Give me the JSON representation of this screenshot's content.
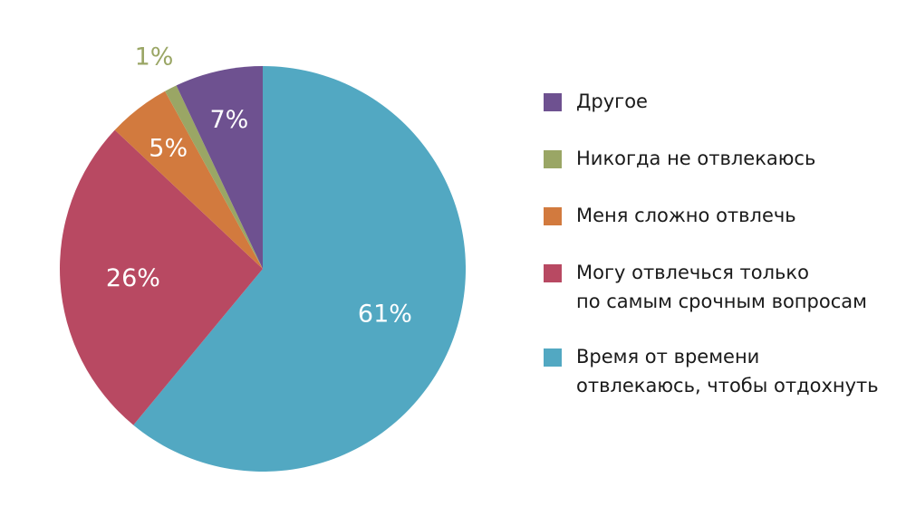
{
  "chart_data": {
    "type": "pie",
    "title": "",
    "legend_position": "right",
    "slices": [
      {
        "label": "Время от времени\nотвлекаюсь, чтобы отдохнуть",
        "value": 61,
        "display": "61%",
        "color": "#52a8c2"
      },
      {
        "label": "Могу отвлечься только\nпо самым срочным вопросам",
        "value": 26,
        "display": "26%",
        "color": "#b84962"
      },
      {
        "label": "Меня сложно отвлечь",
        "value": 5,
        "display": "5%",
        "color": "#d27a3e"
      },
      {
        "label": "Никогда не отвлекаюсь",
        "value": 1,
        "display": "1%",
        "color": "#9aa665"
      },
      {
        "label": "Другое",
        "value": 7,
        "display": "7%",
        "color": "#6e5190"
      }
    ],
    "legend_order": [
      4,
      3,
      2,
      1,
      0
    ]
  }
}
